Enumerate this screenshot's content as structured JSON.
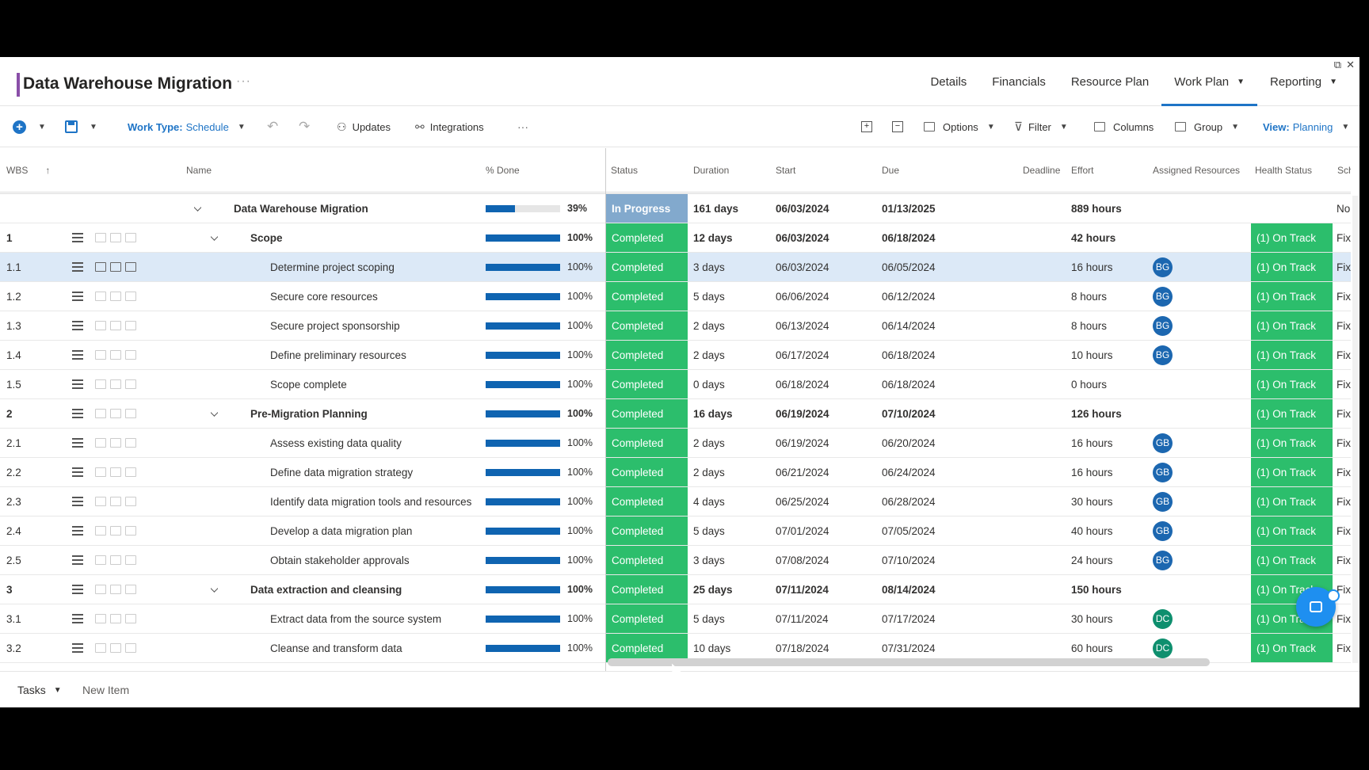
{
  "window": {
    "expand_icon": "expand-icon",
    "close_icon": "close-icon"
  },
  "header": {
    "title": "Data Warehouse Migration",
    "more": "···",
    "tabs": [
      {
        "label": "Details"
      },
      {
        "label": "Financials"
      },
      {
        "label": "Resource Plan"
      },
      {
        "label": "Work Plan",
        "dropdown": true,
        "active": true
      },
      {
        "label": "Reporting",
        "dropdown": true
      }
    ]
  },
  "toolbar": {
    "work_type_label": "Work Type:",
    "work_type_value": "Schedule",
    "updates": "Updates",
    "integrations": "Integrations",
    "more": "···",
    "options": "Options",
    "filter": "Filter",
    "columns": "Columns",
    "group": "Group",
    "view_label": "View:",
    "view_value": "Planning"
  },
  "columns": {
    "wbs": "WBS",
    "name": "Name",
    "done": "% Done",
    "status": "Status",
    "duration": "Duration",
    "start": "Start",
    "due": "Due",
    "deadline": "Deadline",
    "effort": "Effort",
    "resources": "Assigned Resources",
    "health": "Health Status",
    "sch": "Sch"
  },
  "rows": [
    {
      "wbs": "",
      "name": "Data Warehouse Migration",
      "level": 0,
      "pct": 39,
      "pct_label": "39%",
      "status": "In Progress",
      "duration": "161 days",
      "start": "06/03/2024",
      "due": "01/13/2025",
      "effort": "889 hours",
      "resource": "",
      "health": "",
      "sch": "No",
      "bold": true
    },
    {
      "wbs": "1",
      "name": "Scope",
      "level": 1,
      "pct": 100,
      "pct_label": "100%",
      "status": "Completed",
      "duration": "12 days",
      "start": "06/03/2024",
      "due": "06/18/2024",
      "effort": "42 hours",
      "resource": "",
      "health": "(1) On Track",
      "sch": "Fix",
      "bold": true
    },
    {
      "wbs": "1.1",
      "name": "Determine project scoping",
      "level": 2,
      "pct": 100,
      "pct_label": "100%",
      "status": "Completed",
      "duration": "3 days",
      "start": "06/03/2024",
      "due": "06/05/2024",
      "effort": "16 hours",
      "resource": "BG",
      "health": "(1) On Track",
      "sch": "Fix",
      "selected": true
    },
    {
      "wbs": "1.2",
      "name": "Secure core resources",
      "level": 2,
      "pct": 100,
      "pct_label": "100%",
      "status": "Completed",
      "duration": "5 days",
      "start": "06/06/2024",
      "due": "06/12/2024",
      "effort": "8 hours",
      "resource": "BG",
      "health": "(1) On Track",
      "sch": "Fix"
    },
    {
      "wbs": "1.3",
      "name": "Secure project sponsorship",
      "level": 2,
      "pct": 100,
      "pct_label": "100%",
      "status": "Completed",
      "duration": "2 days",
      "start": "06/13/2024",
      "due": "06/14/2024",
      "effort": "8 hours",
      "resource": "BG",
      "health": "(1) On Track",
      "sch": "Fix"
    },
    {
      "wbs": "1.4",
      "name": "Define preliminary resources",
      "level": 2,
      "pct": 100,
      "pct_label": "100%",
      "status": "Completed",
      "duration": "2 days",
      "start": "06/17/2024",
      "due": "06/18/2024",
      "effort": "10 hours",
      "resource": "BG",
      "health": "(1) On Track",
      "sch": "Fix"
    },
    {
      "wbs": "1.5",
      "name": "Scope complete",
      "level": 2,
      "pct": 100,
      "pct_label": "100%",
      "status": "Completed",
      "duration": "0 days",
      "start": "06/18/2024",
      "due": "06/18/2024",
      "effort": "0 hours",
      "resource": "",
      "health": "(1) On Track",
      "sch": "Fix"
    },
    {
      "wbs": "2",
      "name": "Pre-Migration Planning",
      "level": 1,
      "pct": 100,
      "pct_label": "100%",
      "status": "Completed",
      "duration": "16 days",
      "start": "06/19/2024",
      "due": "07/10/2024",
      "effort": "126 hours",
      "resource": "",
      "health": "(1) On Track",
      "sch": "Fix",
      "bold": true
    },
    {
      "wbs": "2.1",
      "name": "Assess existing data quality",
      "level": 2,
      "pct": 100,
      "pct_label": "100%",
      "status": "Completed",
      "duration": "2 days",
      "start": "06/19/2024",
      "due": "06/20/2024",
      "effort": "16 hours",
      "resource": "GB",
      "health": "(1) On Track",
      "sch": "Fix"
    },
    {
      "wbs": "2.2",
      "name": "Define data migration strategy",
      "level": 2,
      "pct": 100,
      "pct_label": "100%",
      "status": "Completed",
      "duration": "2 days",
      "start": "06/21/2024",
      "due": "06/24/2024",
      "effort": "16 hours",
      "resource": "GB",
      "health": "(1) On Track",
      "sch": "Fix"
    },
    {
      "wbs": "2.3",
      "name": "Identify data migration tools and resources",
      "level": 2,
      "pct": 100,
      "pct_label": "100%",
      "status": "Completed",
      "duration": "4 days",
      "start": "06/25/2024",
      "due": "06/28/2024",
      "effort": "30 hours",
      "resource": "GB",
      "health": "(1) On Track",
      "sch": "Fix"
    },
    {
      "wbs": "2.4",
      "name": "Develop a data migration plan",
      "level": 2,
      "pct": 100,
      "pct_label": "100%",
      "status": "Completed",
      "duration": "5 days",
      "start": "07/01/2024",
      "due": "07/05/2024",
      "effort": "40 hours",
      "resource": "GB",
      "health": "(1) On Track",
      "sch": "Fix"
    },
    {
      "wbs": "2.5",
      "name": "Obtain stakeholder approvals",
      "level": 2,
      "pct": 100,
      "pct_label": "100%",
      "status": "Completed",
      "duration": "3 days",
      "start": "07/08/2024",
      "due": "07/10/2024",
      "effort": "24 hours",
      "resource": "BG",
      "health": "(1) On Track",
      "sch": "Fix"
    },
    {
      "wbs": "3",
      "name": "Data extraction and cleansing",
      "level": 1,
      "pct": 100,
      "pct_label": "100%",
      "status": "Completed",
      "duration": "25 days",
      "start": "07/11/2024",
      "due": "08/14/2024",
      "effort": "150 hours",
      "resource": "",
      "health": "(1) On Track",
      "sch": "Fix",
      "bold": true
    },
    {
      "wbs": "3.1",
      "name": "Extract data from the source system",
      "level": 2,
      "pct": 100,
      "pct_label": "100%",
      "status": "Completed",
      "duration": "5 days",
      "start": "07/11/2024",
      "due": "07/17/2024",
      "effort": "30 hours",
      "resource": "DC",
      "health": "(1) On Track",
      "sch": "Fix"
    },
    {
      "wbs": "3.2",
      "name": "Cleanse and transform data",
      "level": 2,
      "pct": 100,
      "pct_label": "100%",
      "status": "Completed",
      "duration": "10 days",
      "start": "07/18/2024",
      "due": "07/31/2024",
      "effort": "60 hours",
      "resource": "DC",
      "health": "(1) On Track",
      "sch": "Fix"
    }
  ],
  "bottom": {
    "tasks": "Tasks",
    "new_item": "New Item"
  },
  "colors": {
    "accent": "#1e74c6",
    "title_accent": "#8a4fa8",
    "completed": "#2cbe6c",
    "in_progress": "#82a9cd",
    "bar": "#0f64b1"
  }
}
